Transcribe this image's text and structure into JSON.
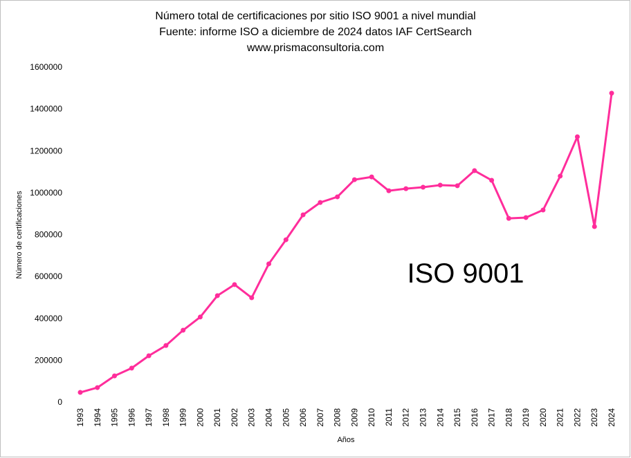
{
  "chart_data": {
    "type": "line",
    "title": [
      "Número total de certificaciones por sitio ISO 9001 a nivel mundial",
      "Fuente: informe ISO  a diciembre de 2024 datos IAF CertSearch",
      "www.prismaconsultoria.com"
    ],
    "xlabel": "Años",
    "ylabel": "Número de certificaciones",
    "annotation": "ISO 9001",
    "ylim": [
      0,
      1600000
    ],
    "yticks": [
      "0",
      "200000",
      "400000",
      "600000",
      "800000",
      "1000000",
      "1200000",
      "1400000",
      "1600000"
    ],
    "grid": false,
    "color": "#FF2D9B",
    "categories": [
      "1993",
      "1994",
      "1995",
      "1996",
      "1997",
      "1998",
      "1999",
      "2000",
      "2001",
      "2002",
      "2003",
      "2004",
      "2005",
      "2006",
      "2007",
      "2008",
      "2009",
      "2010",
      "2011",
      "2012",
      "2013",
      "2014",
      "2015",
      "2016",
      "2017",
      "2018",
      "2019",
      "2020",
      "2021",
      "2022",
      "2023",
      "2024"
    ],
    "series": [
      {
        "name": "ISO 9001",
        "values": [
          46000,
          69000,
          125000,
          162000,
          221000,
          270000,
          343000,
          406000,
          508000,
          561000,
          498000,
          660000,
          775000,
          894000,
          953000,
          980000,
          1062000,
          1075000,
          1009000,
          1019000,
          1026000,
          1036000,
          1033000,
          1105000,
          1059000,
          877000,
          881000,
          917000,
          1079000,
          1267000,
          838000,
          1475000
        ]
      }
    ]
  }
}
